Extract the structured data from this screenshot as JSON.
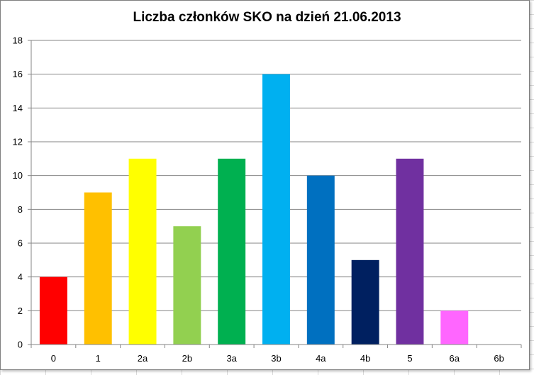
{
  "chart_data": {
    "type": "bar",
    "title": "Liczba członków SKO na dzień 21.06.2013",
    "categories": [
      "0",
      "1",
      "2a",
      "2b",
      "3a",
      "3b",
      "4a",
      "4b",
      "5",
      "6a",
      "6b"
    ],
    "values": [
      4,
      9,
      11,
      7,
      11,
      16,
      10,
      5,
      11,
      2,
      0
    ],
    "colors": [
      "#ff0000",
      "#ffc000",
      "#ffff00",
      "#92d050",
      "#00b050",
      "#00b0f0",
      "#0070c0",
      "#002060",
      "#7030a0",
      "#ff66ff",
      "#ffffff"
    ],
    "ylim": [
      0,
      18
    ],
    "yticks": [
      0,
      2,
      4,
      6,
      8,
      10,
      12,
      14,
      16,
      18
    ],
    "grid": true,
    "legend": "none"
  }
}
